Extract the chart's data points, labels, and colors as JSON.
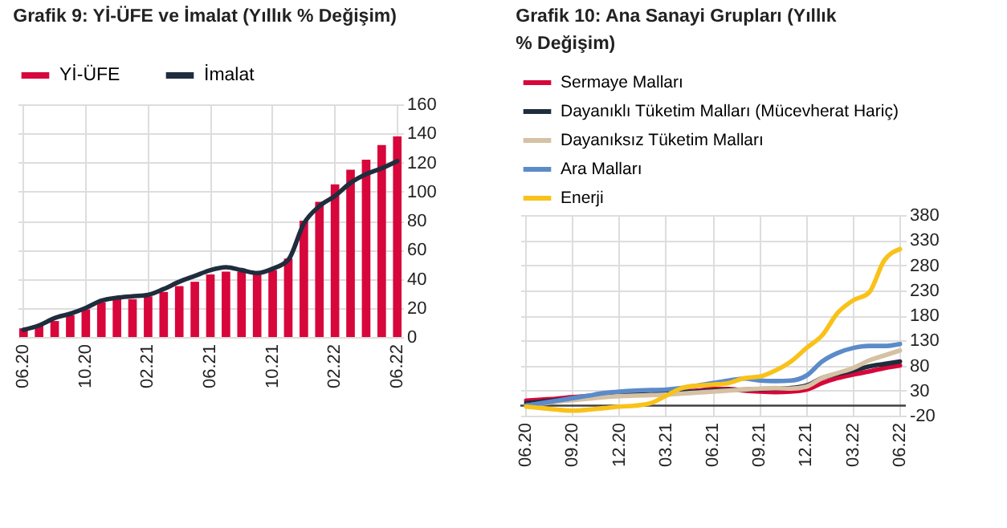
{
  "chart_data": [
    {
      "type": "bar",
      "title": "Grafik 9: Yİ-ÜFE ve İmalat (Yıllık % Değişim)",
      "categories": [
        "06.20",
        null,
        null,
        null,
        "10.20",
        null,
        null,
        null,
        "02.21",
        null,
        null,
        null,
        "06.21",
        null,
        null,
        null,
        "10.21",
        null,
        null,
        null,
        "02.22",
        null,
        null,
        null,
        "06.22"
      ],
      "series": [
        {
          "name": "Yİ-ÜFE",
          "type": "bar",
          "color": "#d7063b",
          "values": [
            6,
            8,
            11,
            15,
            19,
            24,
            26,
            26,
            28,
            31,
            35,
            38,
            43,
            45,
            45,
            43,
            46,
            54,
            80,
            93,
            105,
            115,
            122,
            132,
            138
          ]
        },
        {
          "name": "İmalat",
          "type": "line",
          "color": "#1f2d3d",
          "values": [
            5,
            8,
            13,
            16,
            20,
            25,
            27,
            28,
            29,
            33,
            38,
            42,
            46,
            48,
            46,
            44,
            47,
            53,
            78,
            90,
            97,
            106,
            112,
            116,
            121
          ]
        }
      ],
      "ylim": [
        0,
        160
      ],
      "yticks": [
        0,
        20,
        40,
        60,
        80,
        100,
        120,
        140,
        160
      ],
      "grid": true,
      "legend": "top"
    },
    {
      "type": "line",
      "title": "Grafik 10: Ana Sanayi Grupları (Yıllık % Değişim)",
      "categories": [
        "06.20",
        null,
        null,
        "09.20",
        null,
        null,
        "12.20",
        null,
        null,
        "03.21",
        null,
        null,
        "06.21",
        null,
        null,
        "09.21",
        null,
        null,
        "12.21",
        null,
        null,
        "03.22",
        null,
        null,
        "06.22"
      ],
      "series": [
        {
          "name": "Sermaye Malları",
          "color": "#d7063b",
          "values": [
            10,
            12,
            14,
            17,
            19,
            21,
            23,
            24,
            25,
            26,
            28,
            30,
            33,
            33,
            30,
            28,
            27,
            28,
            32,
            45,
            55,
            62,
            68,
            75,
            80
          ]
        },
        {
          "name": "Dayanıklı Tüketim Malları (Mücevherat Hariç)",
          "color": "#1f2d3d",
          "values": [
            5,
            8,
            11,
            14,
            17,
            20,
            22,
            24,
            25,
            26,
            27,
            28,
            30,
            31,
            32,
            33,
            34,
            35,
            40,
            55,
            63,
            70,
            78,
            83,
            88
          ]
        },
        {
          "name": "Dayanıksız Tüketim Malları",
          "color": "#d5c1a3",
          "values": [
            0,
            4,
            8,
            11,
            14,
            17,
            19,
            20,
            21,
            22,
            24,
            26,
            28,
            30,
            32,
            34,
            35,
            34,
            38,
            55,
            65,
            75,
            90,
            100,
            110
          ]
        },
        {
          "name": "Ara Malları",
          "color": "#5b8bc9",
          "values": [
            0,
            5,
            10,
            15,
            20,
            25,
            28,
            30,
            31,
            32,
            35,
            40,
            45,
            50,
            54,
            50,
            49,
            50,
            60,
            88,
            105,
            115,
            119,
            119,
            123
          ]
        },
        {
          "name": "Enerji",
          "color": "#f9c21a",
          "values": [
            -2,
            -5,
            -8,
            -10,
            -8,
            -5,
            -2,
            0,
            5,
            20,
            35,
            40,
            42,
            45,
            55,
            58,
            70,
            88,
            115,
            140,
            185,
            210,
            225,
            290,
            312
          ]
        }
      ],
      "ylim": [
        -20,
        380
      ],
      "yticks": [
        -20,
        30,
        80,
        130,
        180,
        230,
        280,
        330,
        380
      ],
      "grid": true,
      "legend": "top left",
      "ref_lines": [
        {
          "axis": "y",
          "value": 0,
          "color": "#404040"
        }
      ]
    }
  ]
}
